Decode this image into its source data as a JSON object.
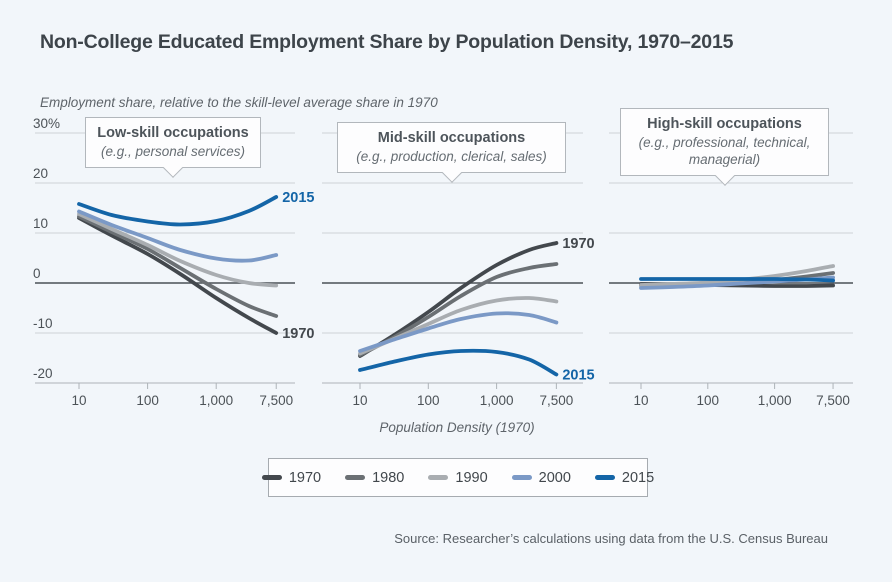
{
  "page": {
    "title": "Non-College Educated Employment Share by Population Density, 1970–2015",
    "subtitle": "Employment share, relative to the skill-level average share in 1970",
    "source": "Source: Researcher’s calculations using data from the U.S. Census Bureau"
  },
  "chart_data": {
    "type": "line",
    "title": "Non-College Educated Employment Share by Population Density, 1970–2015",
    "y_axis_note": "Employment share, relative to the skill-level average share in 1970",
    "xlabel": "Population Density (1970)",
    "x_scale": "log",
    "grid": true,
    "ylim": [
      -20,
      30
    ],
    "x": [
      10,
      30,
      100,
      300,
      1000,
      3000,
      7500
    ],
    "x_ticks": [
      10,
      100,
      1000,
      7500
    ],
    "x_tick_labels": [
      "10",
      "100",
      "1,000",
      "7,500"
    ],
    "y_ticks": [
      30,
      20,
      10,
      0,
      -10,
      -20
    ],
    "y_tick_labels": [
      "30%",
      "20",
      "10",
      "0",
      "-10",
      "-20"
    ],
    "series_order": [
      "1970",
      "1980",
      "1990",
      "2000",
      "2015"
    ],
    "series_colors": {
      "1970": "#43484d",
      "1980": "#6b7074",
      "1990": "#a9adb1",
      "2000": "#7b99c6",
      "2015": "#1465a7"
    },
    "legend": [
      "1970",
      "1980",
      "1990",
      "2000",
      "2015"
    ],
    "legend_position": "bottom-center",
    "panels": [
      {
        "label": "Low-skill occupations",
        "sublabel": "(e.g., personal services)",
        "series": [
          {
            "name": "1970",
            "values": [
              13.0,
              9.5,
              5.8,
              1.8,
              -3.0,
              -7.0,
              -10.0
            ]
          },
          {
            "name": "1980",
            "values": [
              13.3,
              10.2,
              6.8,
              3.0,
              -1.2,
              -4.6,
              -6.6
            ]
          },
          {
            "name": "1990",
            "values": [
              13.8,
              10.8,
              7.6,
              4.4,
              1.6,
              0.0,
              -0.5
            ]
          },
          {
            "name": "2000",
            "values": [
              14.3,
              11.6,
              9.0,
              6.6,
              4.9,
              4.5,
              5.6
            ]
          },
          {
            "name": "2015",
            "values": [
              15.8,
              13.6,
              12.3,
              11.7,
              12.4,
              14.4,
              17.2
            ]
          }
        ],
        "end_labels": [
          {
            "text": "2015",
            "value": 17.2
          },
          {
            "text": "1970",
            "value": -10.0
          }
        ]
      },
      {
        "label": "Mid-skill occupations",
        "sublabel": "(e.g., production, clerical, sales)",
        "series": [
          {
            "name": "1970",
            "values": [
              -14.6,
              -10.6,
              -5.8,
              -1.0,
              3.6,
              6.6,
              8.0
            ]
          },
          {
            "name": "1980",
            "values": [
              -14.4,
              -11.0,
              -6.8,
              -2.6,
              1.2,
              3.0,
              3.8
            ]
          },
          {
            "name": "1990",
            "values": [
              -14.1,
              -11.3,
              -8.2,
              -5.4,
              -3.5,
              -3.0,
              -3.7
            ]
          },
          {
            "name": "2000",
            "values": [
              -13.6,
              -11.4,
              -9.1,
              -7.2,
              -6.1,
              -6.4,
              -7.9
            ]
          },
          {
            "name": "2015",
            "values": [
              -17.4,
              -15.8,
              -14.3,
              -13.6,
              -13.8,
              -15.3,
              -18.3
            ]
          }
        ],
        "end_labels": [
          {
            "text": "1970",
            "value": 8.0
          },
          {
            "text": "2015",
            "value": -18.3
          }
        ]
      },
      {
        "label": "High-skill occupations",
        "sublabel": "(e.g., professional, technical, managerial)",
        "series": [
          {
            "name": "1970",
            "values": [
              -0.2,
              -0.3,
              -0.4,
              -0.5,
              -0.6,
              -0.6,
              -0.5
            ]
          },
          {
            "name": "1980",
            "values": [
              -0.5,
              -0.4,
              -0.2,
              0.1,
              0.6,
              1.3,
              2.0
            ]
          },
          {
            "name": "1990",
            "values": [
              -0.4,
              -0.2,
              0.1,
              0.6,
              1.4,
              2.4,
              3.4
            ]
          },
          {
            "name": "2000",
            "values": [
              -1.0,
              -0.8,
              -0.5,
              -0.1,
              0.3,
              0.7,
              1.1
            ]
          },
          {
            "name": "2015",
            "values": [
              0.8,
              0.8,
              0.8,
              0.8,
              0.8,
              0.7,
              0.5
            ]
          }
        ],
        "end_labels": []
      }
    ]
  }
}
